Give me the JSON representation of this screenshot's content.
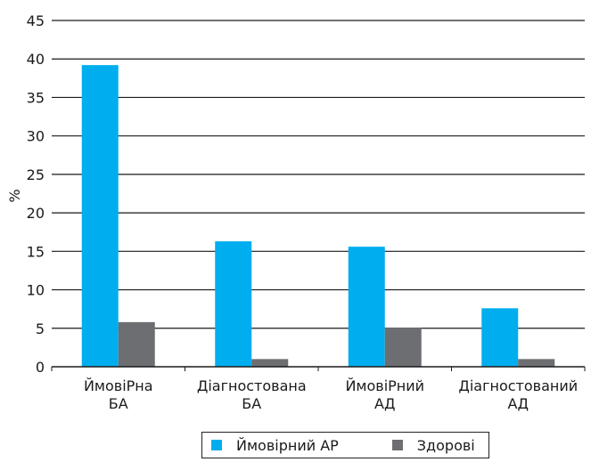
{
  "chart_data": {
    "type": "bar",
    "title": "",
    "xlabel": "",
    "ylabel": "%",
    "ylim": [
      0,
      45
    ],
    "yticks": [
      "0",
      "5",
      "10",
      "15",
      "20",
      "25",
      "30",
      "35",
      "40",
      "45"
    ],
    "grid": true,
    "legend_position": "bottom",
    "categories": [
      [
        "ЙмовіРна",
        "БА"
      ],
      [
        "Діагностована",
        "БА"
      ],
      [
        "ЙмовіРний",
        "АД"
      ],
      [
        "Діагностований",
        "АД"
      ]
    ],
    "series": [
      {
        "name": "Ймовірний АР",
        "color": "#00aeef",
        "values": [
          39.2,
          16.3,
          15.6,
          7.6
        ]
      },
      {
        "name": "Здорові",
        "color": "#6d6e71",
        "values": [
          5.8,
          1.0,
          5.1,
          1.0
        ]
      }
    ]
  }
}
